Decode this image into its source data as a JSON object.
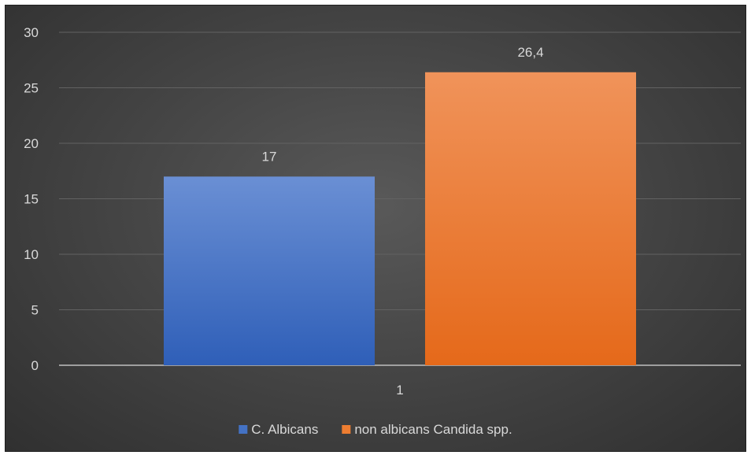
{
  "chart_data": {
    "type": "bar",
    "categories": [
      "1"
    ],
    "series": [
      {
        "name": "C. Albicans",
        "values": [
          17
        ],
        "value_labels": [
          "17"
        ],
        "color": "#4472c4"
      },
      {
        "name": "non albicans Candida spp.",
        "values": [
          26.4
        ],
        "value_labels": [
          "26,4"
        ],
        "color": "#ed7d31"
      }
    ],
    "ylim": [
      0,
      30
    ],
    "y_ticks": [
      0,
      5,
      10,
      15,
      20,
      25,
      30
    ],
    "grid": true,
    "legend_position": "bottom",
    "background": "#464646"
  }
}
